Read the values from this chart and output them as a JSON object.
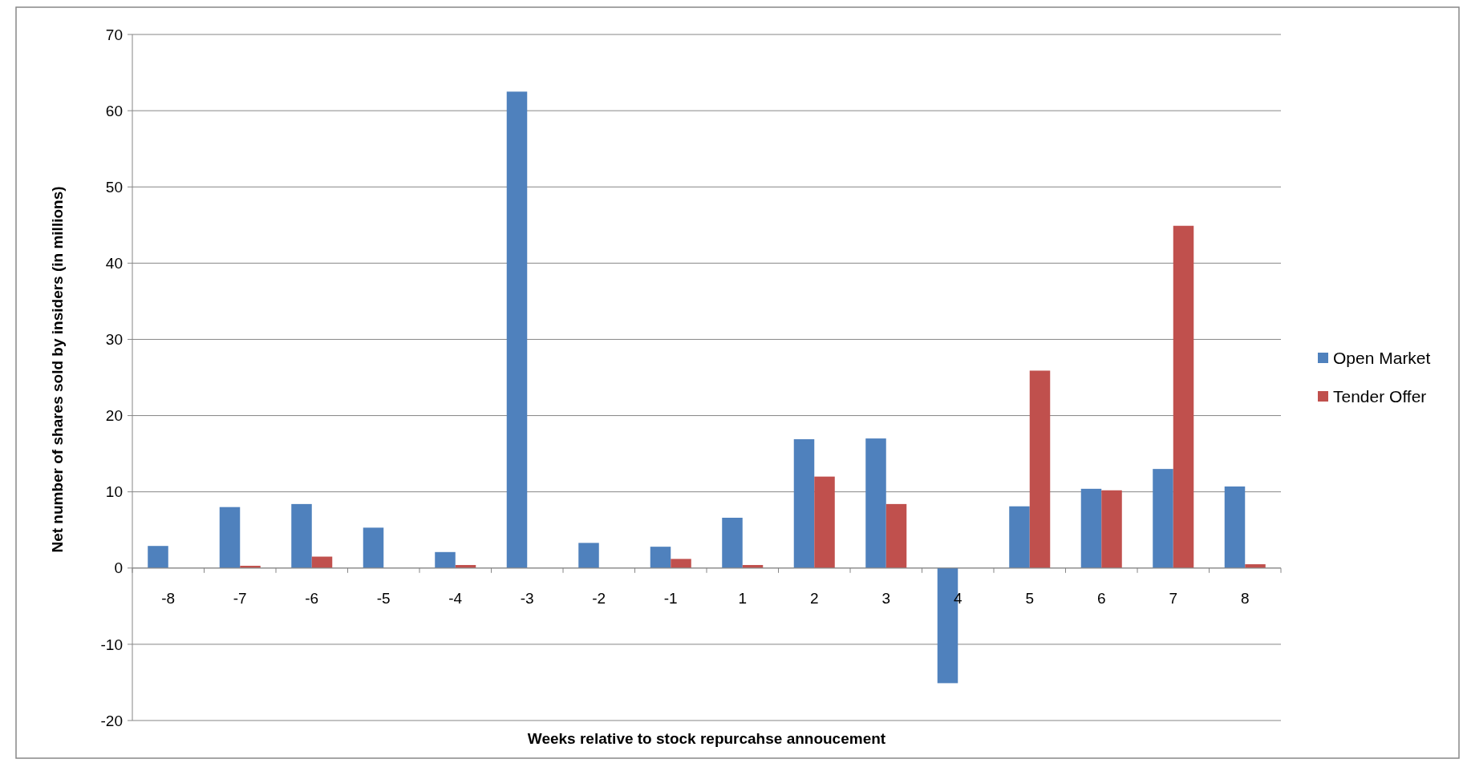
{
  "chart_data": {
    "type": "bar",
    "xlabel": "Weeks relative to stock repurcahse annoucement",
    "ylabel": "Net number of shares sold by insiders (in millions)",
    "categories": [
      "-8",
      "-7",
      "-6",
      "-5",
      "-4",
      "-3",
      "-2",
      "-1",
      "1",
      "2",
      "3",
      "4",
      "5",
      "6",
      "7",
      "8"
    ],
    "series": [
      {
        "name": "Open Market",
        "color": "#4f81bd",
        "values": [
          2.9,
          8.0,
          8.4,
          5.3,
          2.1,
          62.5,
          3.3,
          2.8,
          6.6,
          16.9,
          17.0,
          -15.1,
          8.1,
          10.4,
          13.0,
          10.7
        ]
      },
      {
        "name": "Tender Offer",
        "color": "#c0504d",
        "values": [
          0,
          0.3,
          1.5,
          0,
          0.4,
          0,
          0,
          1.2,
          0.4,
          12.0,
          8.4,
          0,
          25.9,
          10.2,
          44.9,
          0.5
        ]
      }
    ],
    "ylim": [
      -20,
      70
    ],
    "yticks": [
      -20,
      -10,
      0,
      10,
      20,
      30,
      40,
      50,
      60,
      70
    ],
    "grid": "y",
    "legend": "right"
  }
}
